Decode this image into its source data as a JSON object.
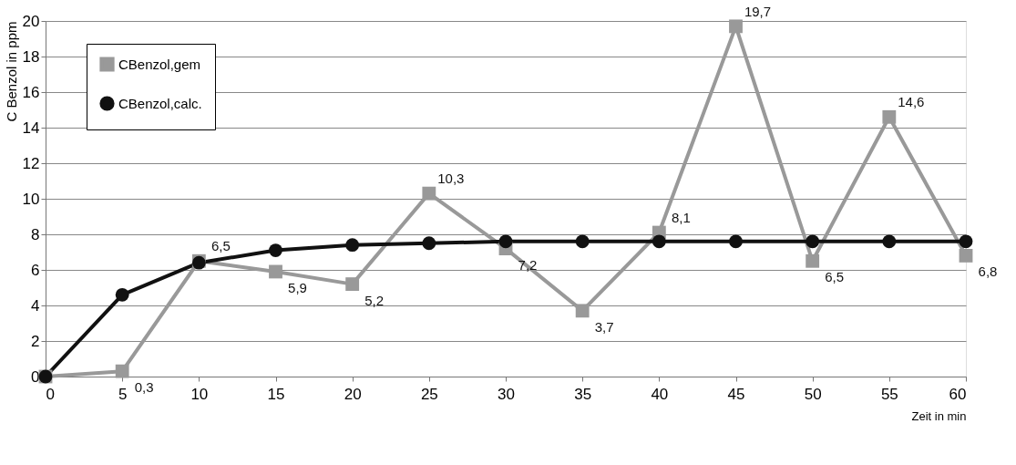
{
  "chart_data": {
    "type": "line",
    "xlabel": "Zeit in min",
    "ylabel": "C Benzol in ppm",
    "x": [
      0,
      5,
      10,
      15,
      20,
      25,
      30,
      35,
      40,
      45,
      50,
      55,
      60
    ],
    "series": [
      {
        "name": "CBenzol,gem",
        "color": "#999999",
        "marker": "square",
        "values": [
          0,
          0.3,
          6.5,
          5.9,
          5.2,
          10.3,
          7.2,
          3.7,
          8.1,
          19.7,
          6.5,
          14.6,
          6.8
        ],
        "value_labels": [
          null,
          "0,3",
          "6,5",
          "5,9",
          "5,2",
          "10,3",
          "7,2",
          "3,7",
          "8,1",
          "19,7",
          "6,5",
          "14,6",
          "6,8"
        ]
      },
      {
        "name": "CBenzol,calc.",
        "color": "#111111",
        "marker": "circle",
        "values": [
          0,
          4.6,
          6.4,
          7.1,
          7.4,
          7.5,
          7.6,
          7.6,
          7.6,
          7.6,
          7.6,
          7.6,
          7.6
        ]
      }
    ],
    "xlim": [
      0,
      60
    ],
    "xticks": [
      0,
      5,
      10,
      15,
      20,
      25,
      30,
      35,
      40,
      45,
      50,
      55,
      60
    ],
    "ylim": [
      0,
      20
    ],
    "yticks": [
      0,
      2,
      4,
      6,
      8,
      10,
      12,
      14,
      16,
      18,
      20
    ],
    "grid": "y",
    "legend": "top left",
    "line_style": "solid"
  }
}
